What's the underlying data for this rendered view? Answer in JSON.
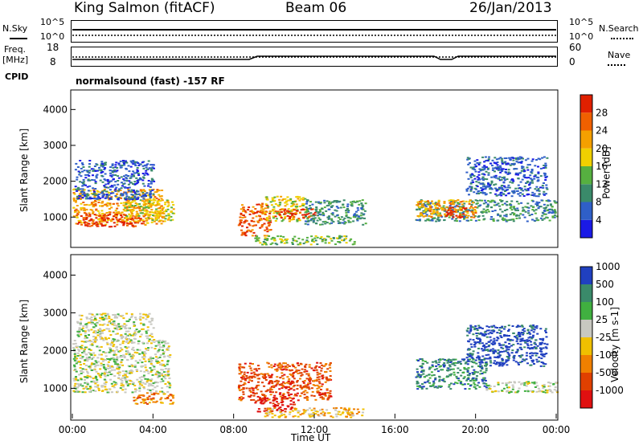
{
  "header": {
    "station": "King Salmon (fitACF)",
    "beam": "Beam 06",
    "date": "26/Jan/2013"
  },
  "nsky_panel": {
    "left_label": "N.Sky",
    "left_ticks": [
      "10^5",
      "10^0"
    ],
    "right_label": "N.Search",
    "right_ticks": [
      "10^5",
      "10^0"
    ]
  },
  "freq_panel": {
    "left_label_1": "Freq.",
    "left_label_2": "[MHz]",
    "left_ticks": [
      "18",
      "8"
    ],
    "right_label": "Nave",
    "right_ticks": [
      "60",
      "0"
    ]
  },
  "cpid": {
    "label": "CPID",
    "text": "normalsound (fast) -157 RF"
  },
  "colors": {
    "power": [
      "#1a1ae6",
      "#2f5fc8",
      "#3a8a6a",
      "#56b040",
      "#f0d000",
      "#f5a000",
      "#f06000",
      "#e02000"
    ],
    "velocity": [
      "#2040c0",
      "#3a8a6a",
      "#40b040",
      "#c8c8c0",
      "#f0c000",
      "#f08000",
      "#e04000",
      "#e01010"
    ]
  },
  "chart_data": [
    {
      "type": "heatmap",
      "name": "power",
      "ylabel": "Slant Range [km]",
      "yticks": [
        "1000",
        "2000",
        "3000",
        "4000"
      ],
      "ylim": [
        200,
        4500
      ],
      "xlim": [
        0,
        24
      ],
      "colorbar_label": "Power [dB]",
      "colorbar_ticks": [
        "4",
        "8",
        "12",
        "16",
        "20",
        "24",
        "28"
      ],
      "patches": [
        {
          "t0": 0.0,
          "t1": 4.5,
          "r0": 800,
          "r1": 1800,
          "level": 5
        },
        {
          "t0": 0.2,
          "t1": 3.5,
          "r0": 750,
          "r1": 1100,
          "level": 7
        },
        {
          "t0": 2.5,
          "t1": 5.0,
          "r0": 900,
          "r1": 1500,
          "level": 4
        },
        {
          "t0": 0.1,
          "t1": 4.0,
          "r0": 1500,
          "r1": 2600,
          "level": 1
        },
        {
          "t0": 8.2,
          "t1": 9.8,
          "r0": 500,
          "r1": 1400,
          "level": 6
        },
        {
          "t0": 9.5,
          "t1": 11.5,
          "r0": 900,
          "r1": 1600,
          "level": 4
        },
        {
          "t0": 10.0,
          "t1": 12.0,
          "r0": 950,
          "r1": 1250,
          "level": 7
        },
        {
          "t0": 11.5,
          "t1": 14.5,
          "r0": 800,
          "r1": 1500,
          "level": 2
        },
        {
          "t0": 9.0,
          "t1": 14.0,
          "r0": 250,
          "r1": 500,
          "level": 3
        },
        {
          "t0": 17.0,
          "t1": 24.0,
          "r0": 900,
          "r1": 1500,
          "level": 2
        },
        {
          "t0": 17.0,
          "t1": 20.0,
          "r0": 1000,
          "r1": 1500,
          "level": 5
        },
        {
          "t0": 18.5,
          "t1": 19.5,
          "r0": 1000,
          "r1": 1300,
          "level": 7
        },
        {
          "t0": 19.5,
          "t1": 23.5,
          "r0": 1600,
          "r1": 2700,
          "level": 1
        }
      ]
    },
    {
      "type": "heatmap",
      "name": "velocity",
      "ylabel": "Slant Range [km]",
      "yticks": [
        "1000",
        "2000",
        "3000",
        "4000"
      ],
      "ylim": [
        200,
        4500
      ],
      "xlim": [
        0,
        24
      ],
      "colorbar_label": "Velocity [m s-1]",
      "colorbar_ticks": [
        "1000",
        "500",
        "100",
        "25",
        "-25",
        "-100",
        "-500",
        "-1000"
      ],
      "xticks": [
        "00:00",
        "04:00",
        "08:00",
        "12:00",
        "16:00",
        "20:00",
        "00:00"
      ],
      "xlabel": "Time UT",
      "patches": [
        {
          "t0": 0.0,
          "t1": 4.8,
          "r0": 900,
          "r1": 2300,
          "level": 3
        },
        {
          "t0": 0.2,
          "t1": 4.0,
          "r0": 2300,
          "r1": 3000,
          "level": 3
        },
        {
          "t0": 3.0,
          "t1": 5.0,
          "r0": 600,
          "r1": 900,
          "level": 5
        },
        {
          "t0": 8.2,
          "t1": 12.8,
          "r0": 700,
          "r1": 1700,
          "level": 6
        },
        {
          "t0": 9.0,
          "t1": 11.0,
          "r0": 400,
          "r1": 800,
          "level": 7
        },
        {
          "t0": 9.5,
          "t1": 14.5,
          "r0": 250,
          "r1": 500,
          "level": 4
        },
        {
          "t0": 17.0,
          "t1": 20.5,
          "r0": 1000,
          "r1": 1800,
          "level": 1
        },
        {
          "t0": 20.5,
          "t1": 24.0,
          "r0": 900,
          "r1": 1200,
          "level": 3
        },
        {
          "t0": 19.5,
          "t1": 23.5,
          "r0": 1600,
          "r1": 2700,
          "level": 0
        }
      ]
    }
  ]
}
